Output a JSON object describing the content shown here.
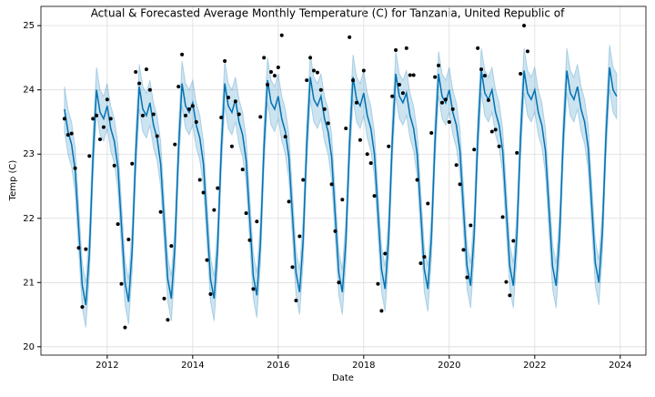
{
  "chart_data": {
    "type": "line",
    "title": "Actual & Forecasted Average Monthly Temperature (C) for Tanzania, United Republic of",
    "x_label": "Date",
    "y_label": "Temp (C)",
    "x": [
      2011.0,
      2011.083,
      2011.167,
      2011.25,
      2011.333,
      2011.417,
      2011.5,
      2011.583,
      2011.667,
      2011.75,
      2011.833,
      2011.917,
      2012.0,
      2012.083,
      2012.167,
      2012.25,
      2012.333,
      2012.417,
      2012.5,
      2012.583,
      2012.667,
      2012.75,
      2012.833,
      2012.917,
      2013.0,
      2013.083,
      2013.167,
      2013.25,
      2013.333,
      2013.417,
      2013.5,
      2013.583,
      2013.667,
      2013.75,
      2013.833,
      2013.917,
      2014.0,
      2014.083,
      2014.167,
      2014.25,
      2014.333,
      2014.417,
      2014.5,
      2014.583,
      2014.667,
      2014.75,
      2014.833,
      2014.917,
      2015.0,
      2015.083,
      2015.167,
      2015.25,
      2015.333,
      2015.417,
      2015.5,
      2015.583,
      2015.667,
      2015.75,
      2015.833,
      2015.917,
      2016.0,
      2016.083,
      2016.167,
      2016.25,
      2016.333,
      2016.417,
      2016.5,
      2016.583,
      2016.667,
      2016.75,
      2016.833,
      2016.917,
      2017.0,
      2017.083,
      2017.167,
      2017.25,
      2017.333,
      2017.417,
      2017.5,
      2017.583,
      2017.667,
      2017.75,
      2017.833,
      2017.917,
      2018.0,
      2018.083,
      2018.167,
      2018.25,
      2018.333,
      2018.417,
      2018.5,
      2018.583,
      2018.667,
      2018.75,
      2018.833,
      2018.917,
      2019.0,
      2019.083,
      2019.167,
      2019.25,
      2019.333,
      2019.417,
      2019.5,
      2019.583,
      2019.667,
      2019.75,
      2019.833,
      2019.917,
      2020.0,
      2020.083,
      2020.167,
      2020.25,
      2020.333,
      2020.417,
      2020.5,
      2020.583,
      2020.667,
      2020.75,
      2020.833,
      2020.917,
      2021.0,
      2021.083,
      2021.167,
      2021.25,
      2021.333,
      2021.417,
      2021.5,
      2021.583,
      2021.667,
      2021.75,
      2021.833,
      2021.917,
      2022.0,
      2022.083,
      2022.167,
      2022.25,
      2022.333,
      2022.417,
      2022.5,
      2022.583,
      2022.667,
      2022.75,
      2022.833,
      2022.917,
      2023.0,
      2023.083,
      2023.167,
      2023.25,
      2023.333,
      2023.417,
      2023.5,
      2023.583,
      2023.667,
      2023.75,
      2023.833,
      2023.917
    ],
    "series": [
      {
        "style": "line",
        "color": "#0072B2",
        "interval": 0.35,
        "values": [
          23.7,
          23.35,
          23.15,
          22.75,
          21.85,
          20.95,
          20.65,
          21.45,
          22.95,
          24.0,
          23.65,
          23.55,
          23.75,
          23.4,
          23.2,
          22.8,
          21.9,
          21.0,
          20.7,
          21.5,
          23.0,
          24.05,
          23.7,
          23.6,
          23.8,
          23.45,
          23.25,
          22.85,
          21.95,
          21.05,
          20.75,
          21.55,
          23.05,
          24.1,
          23.75,
          23.65,
          23.8,
          23.45,
          23.25,
          22.85,
          21.95,
          21.05,
          20.75,
          21.55,
          23.05,
          24.1,
          23.75,
          23.65,
          23.85,
          23.5,
          23.3,
          22.9,
          22.0,
          21.1,
          20.8,
          21.6,
          23.1,
          24.15,
          23.8,
          23.7,
          23.9,
          23.55,
          23.35,
          22.95,
          22.05,
          21.15,
          20.85,
          21.65,
          23.15,
          24.2,
          23.85,
          23.75,
          23.9,
          23.55,
          23.35,
          22.95,
          22.05,
          21.15,
          20.85,
          21.65,
          23.15,
          24.2,
          23.85,
          23.75,
          23.95,
          23.6,
          23.4,
          23.0,
          22.1,
          21.2,
          20.9,
          21.7,
          23.2,
          24.25,
          23.9,
          23.8,
          23.95,
          23.6,
          23.4,
          23.0,
          22.1,
          21.2,
          20.9,
          21.7,
          23.2,
          24.25,
          23.9,
          23.8,
          24.0,
          23.65,
          23.45,
          23.05,
          22.15,
          21.25,
          20.95,
          21.75,
          23.25,
          24.3,
          23.95,
          23.85,
          24.0,
          23.65,
          23.45,
          23.05,
          22.15,
          21.25,
          20.95,
          21.75,
          23.25,
          24.3,
          23.95,
          23.85,
          24.0,
          23.65,
          23.45,
          23.05,
          22.15,
          21.25,
          20.95,
          21.75,
          23.25,
          24.3,
          23.95,
          23.85,
          24.05,
          23.7,
          23.5,
          23.1,
          22.2,
          21.3,
          21.0,
          21.8,
          23.3,
          24.35,
          24.0,
          23.9
        ]
      },
      {
        "style": "points",
        "color": "#000000",
        "values": [
          23.55,
          23.3,
          23.32,
          22.78,
          21.54,
          20.62,
          21.52,
          22.97,
          23.55,
          23.6,
          23.23,
          23.42,
          23.85,
          23.55,
          22.82,
          21.91,
          20.98,
          20.3,
          21.67,
          22.85,
          24.28,
          24.1,
          23.6,
          24.32,
          24.0,
          23.62,
          23.28,
          22.1,
          20.75,
          20.42,
          21.57,
          23.15,
          24.05,
          24.55,
          23.6,
          23.7,
          23.75,
          23.5,
          22.6,
          22.4,
          21.35,
          20.82,
          22.13,
          22.47,
          23.57,
          24.45,
          23.88,
          23.12,
          23.82,
          23.62,
          22.76,
          22.08,
          21.66,
          20.9,
          21.95,
          23.58,
          24.5,
          24.08,
          24.28,
          24.22,
          24.35,
          24.85,
          23.27,
          22.26,
          21.24,
          20.72,
          21.72,
          22.6,
          24.15,
          24.5,
          24.3,
          24.27,
          24.0,
          23.7,
          23.48,
          22.53,
          21.8,
          21.0,
          22.29,
          23.4,
          24.82,
          24.15,
          23.8,
          23.22,
          24.3,
          23.0,
          22.86,
          22.35,
          20.98,
          20.56,
          21.45,
          23.12,
          23.9,
          24.62,
          24.08,
          23.95,
          24.65,
          24.23,
          24.23,
          22.6,
          21.3,
          21.4,
          22.23,
          23.33,
          24.2,
          24.38,
          23.8,
          23.85,
          23.5,
          23.7,
          22.83,
          22.53,
          21.51,
          21.08,
          21.89,
          23.07,
          24.65,
          24.32,
          24.22,
          23.84,
          23.35,
          23.38,
          23.12,
          22.02,
          21.01,
          20.8,
          21.65,
          23.02,
          24.25,
          25.0,
          24.6,
          null,
          null,
          null,
          null,
          null,
          null,
          null,
          null,
          null,
          null,
          null,
          null,
          null,
          null,
          null,
          null,
          null,
          null,
          null,
          null,
          null,
          null,
          null,
          null,
          null
        ]
      }
    ],
    "xlim": [
      2010.45,
      2024.6
    ],
    "ylim": [
      19.87,
      25.3
    ],
    "xticks": [
      2012,
      2014,
      2016,
      2018,
      2020,
      2022,
      2024
    ],
    "yticks": [
      20,
      21,
      22,
      23,
      24,
      25
    ],
    "grid": true
  }
}
